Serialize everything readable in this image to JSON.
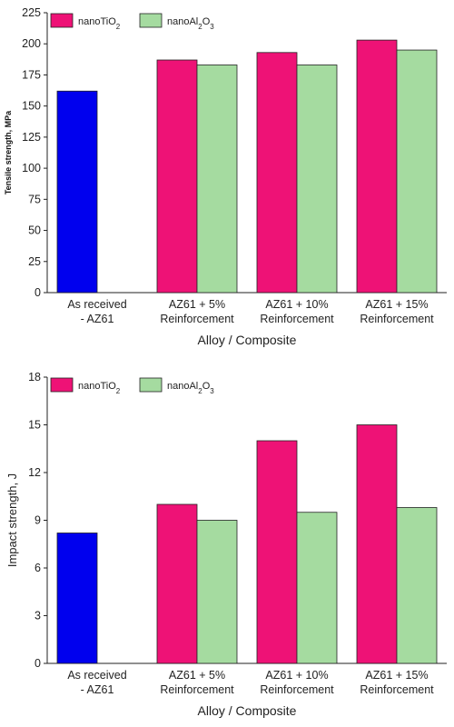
{
  "colors": {
    "baseline": "#0000ee",
    "nanoTiO2": "#ee1276",
    "nanoAl2O3": "#a5dba0"
  },
  "chart_data": [
    {
      "type": "bar",
      "xlabel": "Alloy / Composite",
      "ylabel": "Tensile strength, MPa",
      "ylim": [
        0,
        225
      ],
      "yticks": [
        0,
        25,
        50,
        75,
        100,
        125,
        150,
        175,
        200,
        225
      ],
      "legend_placement": "top-left",
      "categories": [
        [
          "As received",
          "- AZ61"
        ],
        [
          "AZ61 + 5%",
          "Reinforcement"
        ],
        [
          "AZ61 + 10%",
          "Reinforcement"
        ],
        [
          "AZ61 + 15%",
          "Reinforcement"
        ]
      ],
      "baseline_value": 162,
      "series": [
        {
          "name": "nanoTiO2",
          "values": [
            null,
            187,
            193,
            203
          ]
        },
        {
          "name": "nanoAl2O3",
          "values": [
            null,
            183,
            183,
            195
          ]
        }
      ]
    },
    {
      "type": "bar",
      "xlabel": "Alloy / Composite",
      "ylabel": "Impact strength, J",
      "ylim": [
        0,
        18
      ],
      "yticks": [
        0,
        3,
        6,
        9,
        12,
        15,
        18
      ],
      "legend_placement": "top-left",
      "categories": [
        [
          "As received",
          "- AZ61"
        ],
        [
          "AZ61 + 5%",
          "Reinforcement"
        ],
        [
          "AZ61 + 10%",
          "Reinforcement"
        ],
        [
          "AZ61 + 15%",
          "Reinforcement"
        ]
      ],
      "baseline_value": 8.2,
      "series": [
        {
          "name": "nanoTiO2",
          "values": [
            null,
            10,
            14,
            15
          ]
        },
        {
          "name": "nanoAl2O3",
          "values": [
            null,
            9,
            9.5,
            9.8
          ]
        }
      ]
    }
  ]
}
